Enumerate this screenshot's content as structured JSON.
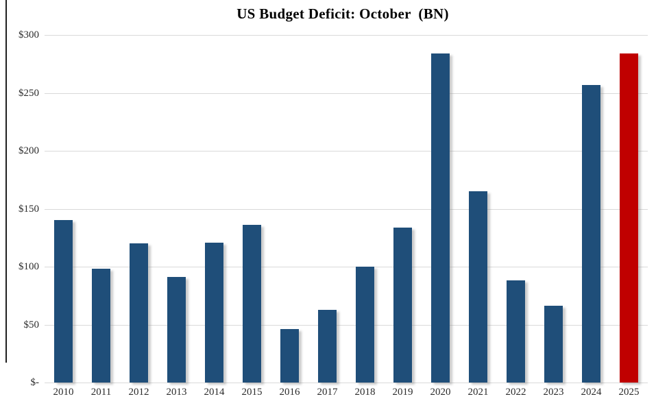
{
  "title": "US Budget Deficit: October  (BN)",
  "chart_data": {
    "type": "bar",
    "title": "US Budget Deficit: October  (BN)",
    "categories": [
      "2010",
      "2011",
      "2012",
      "2013",
      "2014",
      "2015",
      "2016",
      "2017",
      "2018",
      "2019",
      "2020",
      "2021",
      "2022",
      "2023",
      "2024",
      "2025"
    ],
    "values": [
      140,
      98,
      120,
      91,
      121,
      136,
      46,
      63,
      100,
      134,
      284,
      165,
      88,
      66,
      257,
      284
    ],
    "xlabel": "",
    "ylabel": "",
    "ylim": [
      0,
      300
    ],
    "ytick_interval": 50,
    "ytick_labels_top_to_bottom": [
      "$300",
      "$250",
      "$200",
      "$150",
      "$100",
      "$50",
      "$-"
    ],
    "grid": true,
    "legend": "none",
    "colors": {
      "bar_default": "#1f4e79",
      "bar_highlight": "#c00000",
      "gridline": "#d9d9d9",
      "axis_text": "#2b2b2b",
      "title_text": "#000000",
      "background": "#ffffff"
    },
    "highlight_category": "2025"
  }
}
